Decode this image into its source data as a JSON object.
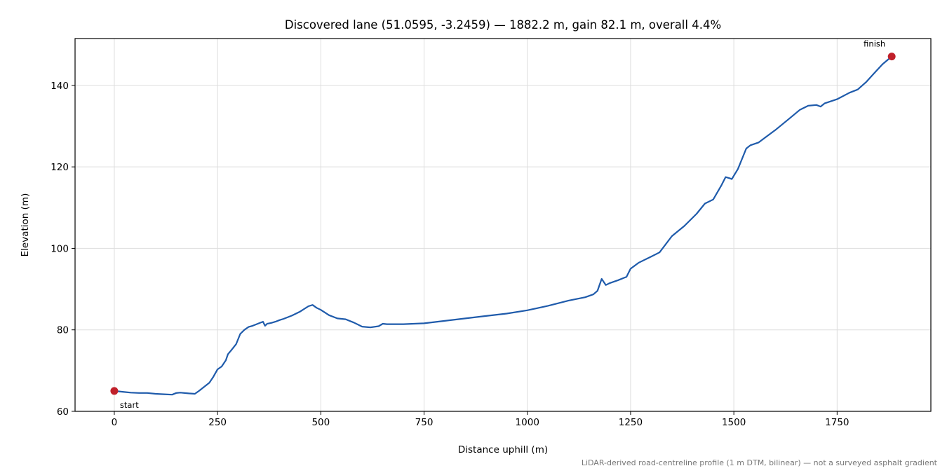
{
  "chart_data": {
    "type": "line",
    "title": "Discovered lane (51.0595, -3.2459) — 1882.2 m, gain 82.1 m, overall 4.4%",
    "xlabel": "Distance uphill (m)",
    "ylabel": "Elevation (m)",
    "xlim": [
      -95,
      1977
    ],
    "ylim": [
      60,
      151.5
    ],
    "x_ticks": [
      0,
      250,
      500,
      750,
      1000,
      1250,
      1500,
      1750
    ],
    "y_ticks": [
      60,
      80,
      100,
      120,
      140
    ],
    "grid": true,
    "line_color": "#1f5bab",
    "marker_color": "#c0202a",
    "series": [
      {
        "x": [
          0,
          20,
          40,
          60,
          80,
          100,
          120,
          140,
          150,
          160,
          180,
          195,
          205,
          215,
          230,
          240,
          250,
          260,
          270,
          275,
          285,
          295,
          305,
          315,
          325,
          335,
          350,
          360,
          365,
          370,
          380,
          390,
          400,
          410,
          430,
          450,
          470,
          480,
          490,
          500,
          520,
          540,
          560,
          580,
          600,
          620,
          640,
          650,
          660,
          700,
          750,
          800,
          850,
          900,
          950,
          1000,
          1050,
          1100,
          1140,
          1160,
          1170,
          1180,
          1190,
          1200,
          1220,
          1240,
          1250,
          1270,
          1300,
          1320,
          1350,
          1380,
          1410,
          1430,
          1450,
          1470,
          1480,
          1490,
          1495,
          1510,
          1530,
          1540,
          1560,
          1580,
          1600,
          1630,
          1660,
          1680,
          1700,
          1710,
          1720,
          1750,
          1780,
          1800,
          1820,
          1840,
          1860,
          1882.2
        ],
        "y": [
          65.0,
          64.8,
          64.6,
          64.5,
          64.5,
          64.3,
          64.2,
          64.1,
          64.5,
          64.6,
          64.4,
          64.3,
          65.0,
          65.8,
          67.0,
          68.5,
          70.3,
          71.0,
          72.5,
          74.0,
          75.2,
          76.5,
          79.0,
          80.0,
          80.7,
          81.0,
          81.6,
          82.0,
          81.0,
          81.5,
          81.7,
          82.0,
          82.4,
          82.7,
          83.5,
          84.5,
          85.8,
          86.1,
          85.4,
          84.9,
          83.6,
          82.8,
          82.6,
          81.8,
          80.8,
          80.6,
          80.9,
          81.5,
          81.4,
          81.4,
          81.6,
          82.2,
          82.8,
          83.4,
          84.0,
          84.8,
          85.9,
          87.2,
          88.0,
          88.7,
          89.6,
          92.5,
          91.0,
          91.5,
          92.2,
          93.0,
          95.0,
          96.5,
          98.0,
          99.0,
          103.0,
          105.5,
          108.5,
          111.0,
          112.0,
          115.5,
          117.5,
          117.2,
          117.0,
          119.5,
          124.5,
          125.3,
          126.0,
          127.5,
          129.0,
          131.5,
          134.0,
          135.0,
          135.2,
          134.8,
          135.6,
          136.6,
          138.2,
          139.0,
          140.8,
          143.0,
          145.2,
          147.1
        ]
      }
    ],
    "annotations": [
      {
        "label": "start",
        "x": 0,
        "y": 65.0
      },
      {
        "label": "finish",
        "x": 1882.2,
        "y": 147.1
      }
    ],
    "footnote": "LiDAR-derived road-centreline profile (1 m DTM, bilinear) — not a surveyed asphalt gradient"
  }
}
